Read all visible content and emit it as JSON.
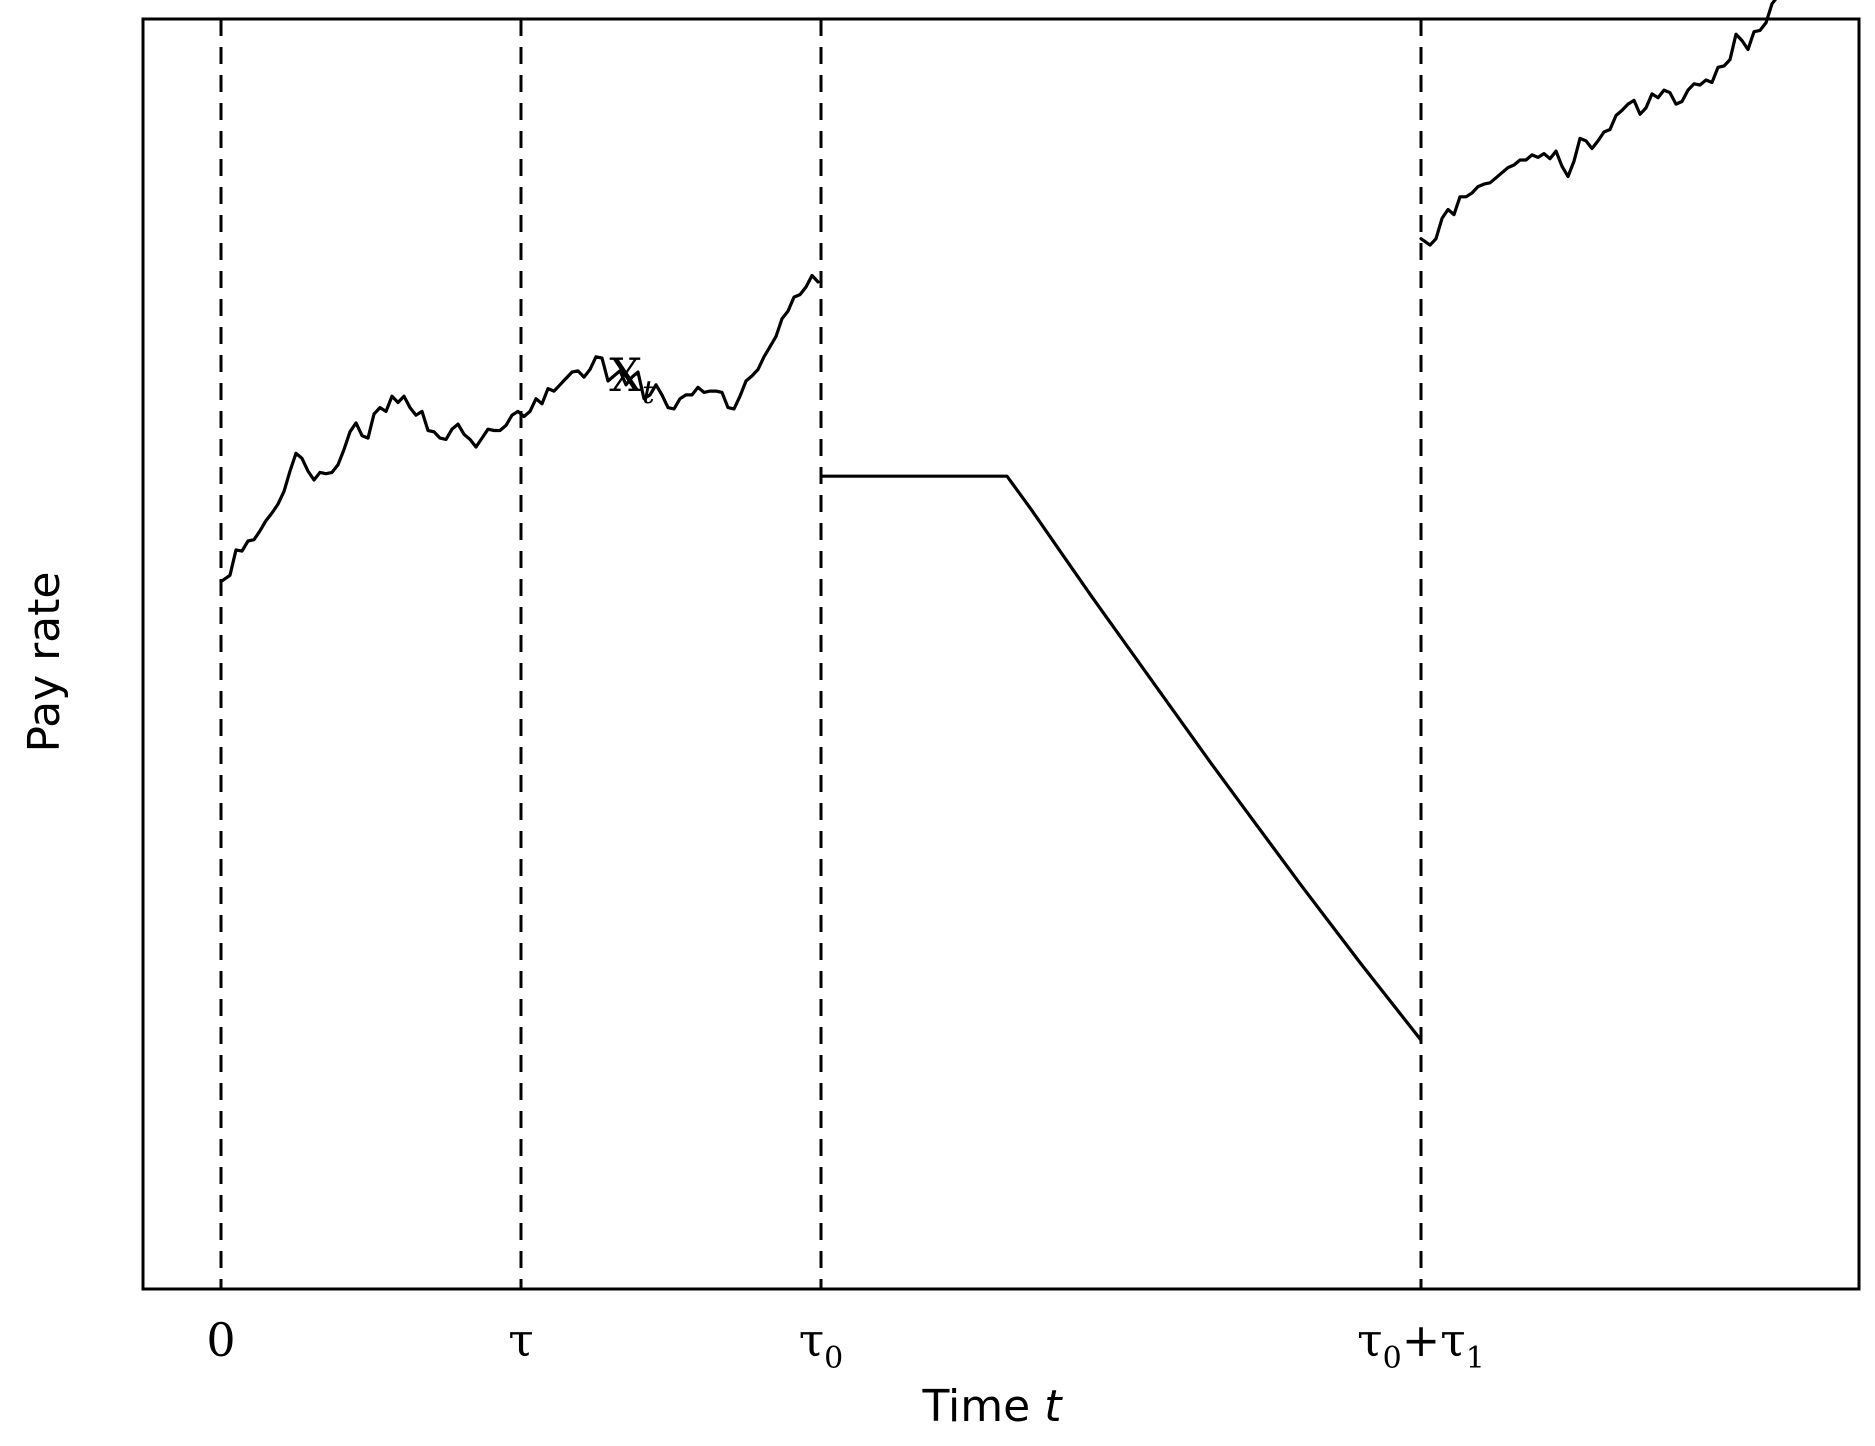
{
  "chart_data": {
    "type": "line",
    "title": "",
    "xlabel": {
      "text": "Time",
      "var": "t"
    },
    "ylabel": "Pay rate",
    "grid": false,
    "legend": "none",
    "y_ticks_shown": false,
    "xlim": [
      -0.26,
      5.46
    ],
    "ylim": [
      0,
      1000
    ],
    "x_ticks": [
      {
        "value": 0,
        "base": "0",
        "sub": ""
      },
      {
        "value": 1,
        "base": "τ",
        "sub": ""
      },
      {
        "value": 2,
        "base": "τ",
        "sub": "0"
      },
      {
        "value": 4,
        "base": "τ",
        "sub": "0",
        "plus_base": "τ",
        "plus_sub": "1"
      }
    ],
    "vlines": {
      "x": [
        0,
        1,
        2,
        4
      ],
      "style": "dashed"
    },
    "annotations": [
      {
        "base": "X",
        "sub": "t",
        "x": 1.37,
        "y": 707
      }
    ],
    "series": [
      {
        "segment": "before_tau0",
        "x": [
          0.0,
          0.03,
          0.05,
          0.07,
          0.09,
          0.11,
          0.13,
          0.15,
          0.17,
          0.19,
          0.21,
          0.23,
          0.25,
          0.27,
          0.29,
          0.31,
          0.33,
          0.35,
          0.37,
          0.39,
          0.41,
          0.43,
          0.45,
          0.47,
          0.49,
          0.51,
          0.53,
          0.55,
          0.57,
          0.59,
          0.61,
          0.63,
          0.65,
          0.67,
          0.69,
          0.71,
          0.73,
          0.75,
          0.77,
          0.79,
          0.81,
          0.83,
          0.85,
          0.87,
          0.89,
          0.91,
          0.93,
          0.95,
          0.97,
          0.99,
          1.01,
          1.03,
          1.05,
          1.07,
          1.09,
          1.11,
          1.13,
          1.15,
          1.17,
          1.19,
          1.21,
          1.23,
          1.25,
          1.27,
          1.29,
          1.31,
          1.33,
          1.35,
          1.37,
          1.39,
          1.41,
          1.43,
          1.45,
          1.47,
          1.49,
          1.51,
          1.53,
          1.55,
          1.57,
          1.59,
          1.61,
          1.63,
          1.65,
          1.67,
          1.69,
          1.71,
          1.73,
          1.75,
          1.77,
          1.79,
          1.81,
          1.83,
          1.85,
          1.87,
          1.89,
          1.91,
          1.93,
          1.95,
          1.97,
          1.99
        ],
        "values": [
          557,
          562,
          582,
          581,
          589,
          590,
          597,
          605,
          611,
          618,
          628,
          644,
          658,
          654,
          644,
          637,
          643,
          642,
          643,
          649,
          661,
          675,
          682,
          672,
          670,
          689,
          694,
          691,
          703,
          698,
          703,
          694,
          688,
          691,
          676,
          675,
          670,
          669,
          677,
          681,
          673,
          669,
          663,
          670,
          677,
          676,
          676,
          680,
          688,
          691,
          687,
          691,
          701,
          697,
          709,
          707,
          712,
          717,
          722,
          723,
          718,
          724,
          734,
          733,
          715,
          719,
          723,
          712,
          718,
          722,
          701,
          704,
          712,
          704,
          694,
          693,
          701,
          704,
          704,
          710,
          706,
          707,
          707,
          706,
          694,
          693,
          703,
          715,
          719,
          724,
          734,
          742,
          750,
          764,
          770,
          781,
          783,
          789,
          798,
          793
        ]
      },
      {
        "segment": "tau0_to_tau0_plus_tau1",
        "x": [
          2.0,
          2.62,
          2.7,
          2.8,
          2.9,
          3.0,
          3.1,
          3.2,
          3.3,
          3.4,
          3.5,
          3.6,
          3.7,
          3.8,
          3.9,
          4.0
        ],
        "values": [
          640,
          640,
          614,
          580,
          546,
          513,
          480,
          447,
          414,
          382,
          350,
          318,
          287,
          256,
          226,
          196
        ]
      },
      {
        "segment": "after_tau0_plus_tau1",
        "x": [
          4.0,
          4.03,
          4.05,
          4.07,
          4.09,
          4.11,
          4.13,
          4.15,
          4.17,
          4.19,
          4.21,
          4.23,
          4.25,
          4.27,
          4.29,
          4.31,
          4.33,
          4.35,
          4.37,
          4.39,
          4.41,
          4.43,
          4.45,
          4.47,
          4.49,
          4.51,
          4.53,
          4.55,
          4.57,
          4.59,
          4.61,
          4.63,
          4.65,
          4.67,
          4.69,
          4.71,
          4.73,
          4.75,
          4.77,
          4.79,
          4.81,
          4.83,
          4.85,
          4.87,
          4.89,
          4.91,
          4.93,
          4.95,
          4.97,
          4.99,
          5.01,
          5.03,
          5.05,
          5.07,
          5.09,
          5.11,
          5.13,
          5.15,
          5.17,
          5.19,
          5.21,
          5.23
        ],
        "values": [
          827,
          822,
          827,
          843,
          850,
          846,
          860,
          860,
          863,
          868,
          870,
          871,
          875,
          879,
          883,
          885,
          889,
          889,
          893,
          891,
          894,
          890,
          896,
          884,
          876,
          888,
          906,
          904,
          898,
          904,
          911,
          913,
          924,
          928,
          933,
          936,
          925,
          930,
          941,
          938,
          944,
          942,
          933,
          935,
          944,
          949,
          948,
          952,
          950,
          962,
          963,
          968,
          988,
          983,
          976,
          990,
          991,
          997,
          1012,
          1018,
          1035,
          1029
        ]
      }
    ]
  }
}
